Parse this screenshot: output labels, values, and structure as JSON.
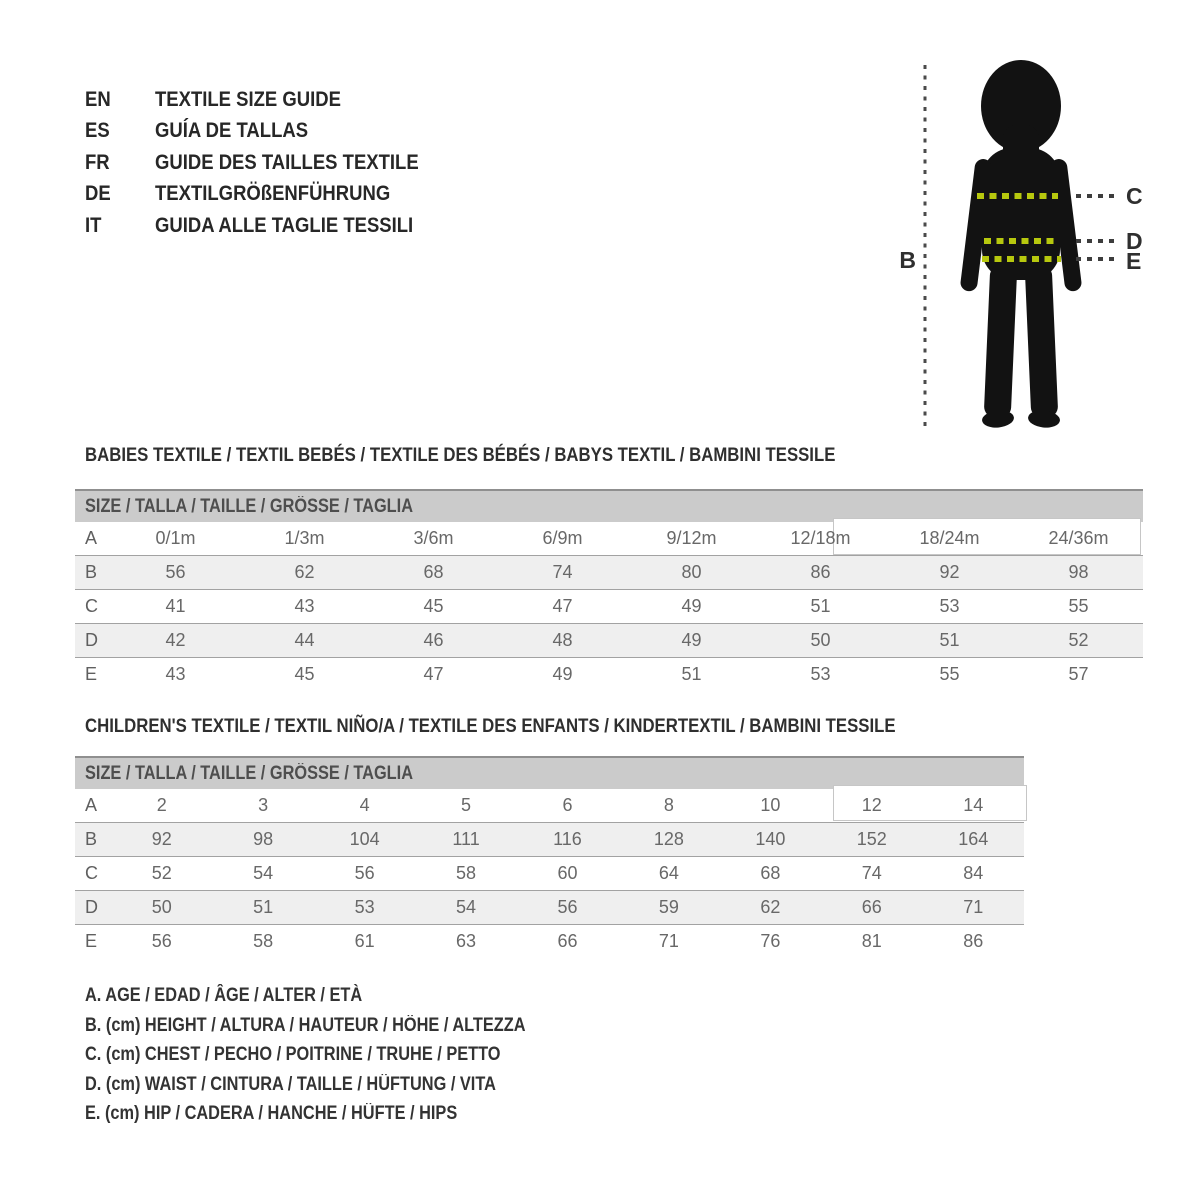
{
  "colors": {
    "accent_dash": "#b7c80e",
    "header_band": "#cbcbcb",
    "row_stripe": "#efefef",
    "silhouette": "#121212"
  },
  "header": {
    "languages": [
      {
        "code": "EN",
        "label": "TEXTILE SIZE GUIDE"
      },
      {
        "code": "ES",
        "label": "GUÍA DE TALLAS"
      },
      {
        "code": "FR",
        "label": "GUIDE DES TAILLES TEXTILE"
      },
      {
        "code": "DE",
        "label": "TEXTILGRÖßENFÜHRUNG"
      },
      {
        "code": "IT",
        "label": "GUIDA ALLE TAGLIE TESSILI"
      }
    ]
  },
  "figure": {
    "height_label": "B",
    "chest_label": "C",
    "waist_label": "D",
    "hip_label": "E"
  },
  "babies_table": {
    "title": "BABIES TEXTILE / TEXTIL BEBÉS / TEXTILE DES BÉBÉS / BABYS TEXTIL / BAMBINI TESSILE",
    "size_header": "SIZE / TALLA / TAILLE / GRÖSSE / TAGLIA",
    "rows": [
      {
        "label": "A",
        "values": [
          "0/1m",
          "1/3m",
          "3/6m",
          "6/9m",
          "9/12m",
          "12/18m",
          "18/24m",
          "24/36m"
        ]
      },
      {
        "label": "B",
        "values": [
          "56",
          "62",
          "68",
          "74",
          "80",
          "86",
          "92",
          "98"
        ]
      },
      {
        "label": "C",
        "values": [
          "41",
          "43",
          "45",
          "47",
          "49",
          "51",
          "53",
          "55"
        ]
      },
      {
        "label": "D",
        "values": [
          "42",
          "44",
          "46",
          "48",
          "49",
          "50",
          "51",
          "52"
        ]
      },
      {
        "label": "E",
        "values": [
          "43",
          "45",
          "47",
          "49",
          "51",
          "53",
          "55",
          "57"
        ]
      }
    ]
  },
  "children_table": {
    "title": "CHILDREN'S TEXTILE / TEXTIL NIÑO/A / TEXTILE DES ENFANTS / KINDERTEXTIL / BAMBINI TESSILE",
    "size_header": "SIZE / TALLA / TAILLE / GRÖSSE / TAGLIA",
    "rows": [
      {
        "label": "A",
        "values": [
          "2",
          "3",
          "4",
          "5",
          "6",
          "8",
          "10",
          "12",
          "14"
        ]
      },
      {
        "label": "B",
        "values": [
          "92",
          "98",
          "104",
          "111",
          "116",
          "128",
          "140",
          "152",
          "164"
        ]
      },
      {
        "label": "C",
        "values": [
          "52",
          "54",
          "56",
          "58",
          "60",
          "64",
          "68",
          "74",
          "84"
        ]
      },
      {
        "label": "D",
        "values": [
          "50",
          "51",
          "53",
          "54",
          "56",
          "59",
          "62",
          "66",
          "71"
        ]
      },
      {
        "label": "E",
        "values": [
          "56",
          "58",
          "61",
          "63",
          "66",
          "71",
          "76",
          "81",
          "86"
        ]
      }
    ]
  },
  "legend": {
    "items": [
      "A. AGE / EDAD / ÂGE / ALTER / ETÀ",
      "B. (cm) HEIGHT / ALTURA / HAUTEUR / HÖHE / ALTEZZA",
      "C. (cm) CHEST / PECHO / POITRINE / TRUHE / PETTO",
      "D. (cm) WAIST / CINTURA / TAILLE / HÜFTUNG / VITA",
      "E. (cm) HIP / CADERA / HANCHE / HÜFTE / HIPS"
    ]
  }
}
